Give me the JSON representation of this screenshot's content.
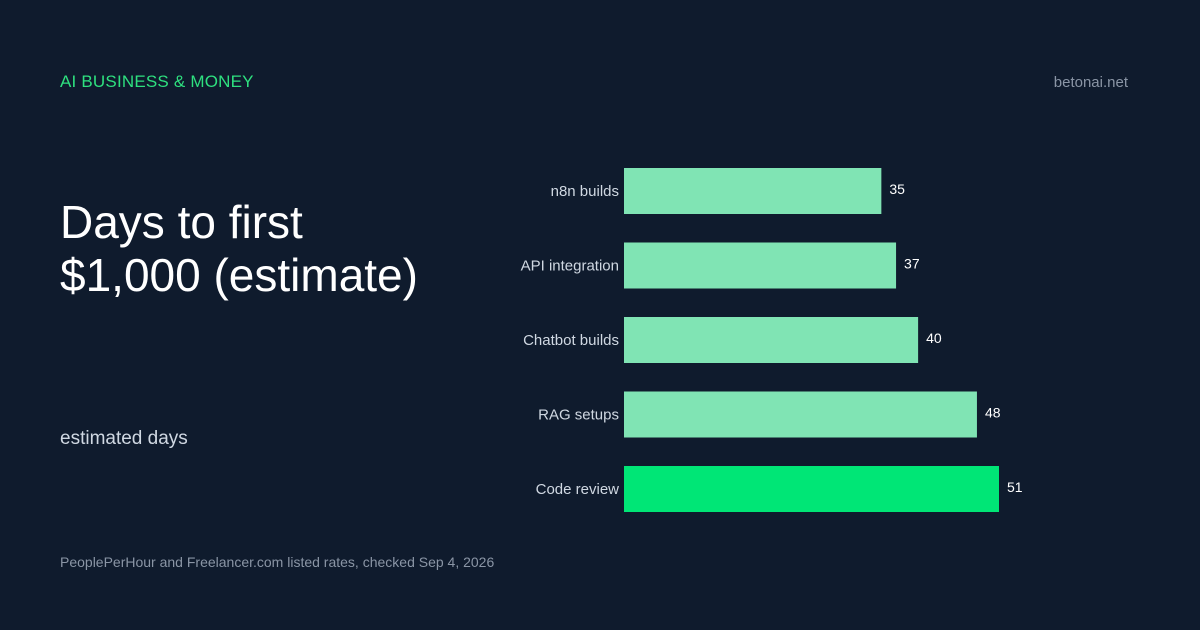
{
  "header": {
    "brand": "AI BUSINESS & MONEY",
    "site": "betonai.net"
  },
  "title_lines": [
    "Days to first",
    "$1,000 (estimate)"
  ],
  "subtitle": "estimated days",
  "source": "PeoplePerHour and Freelancer.com listed rates, checked Sep 4, 2026",
  "colors": {
    "background": "#0f1b2d",
    "accent": "#2ee07f",
    "bar": "#80e4b4",
    "bar_highlight": "#00e676"
  },
  "chart_data": {
    "type": "bar",
    "orientation": "horizontal",
    "categories": [
      "n8n builds",
      "API integration",
      "Chatbot builds",
      "RAG setups",
      "Code review"
    ],
    "values": [
      35,
      37,
      40,
      48,
      51
    ],
    "highlight_index": 4,
    "title": "Days to first $1,000 (estimate)",
    "xlabel": "estimated days",
    "ylabel": "",
    "xlim": [
      0,
      51
    ],
    "grid": false,
    "legend": "none"
  }
}
